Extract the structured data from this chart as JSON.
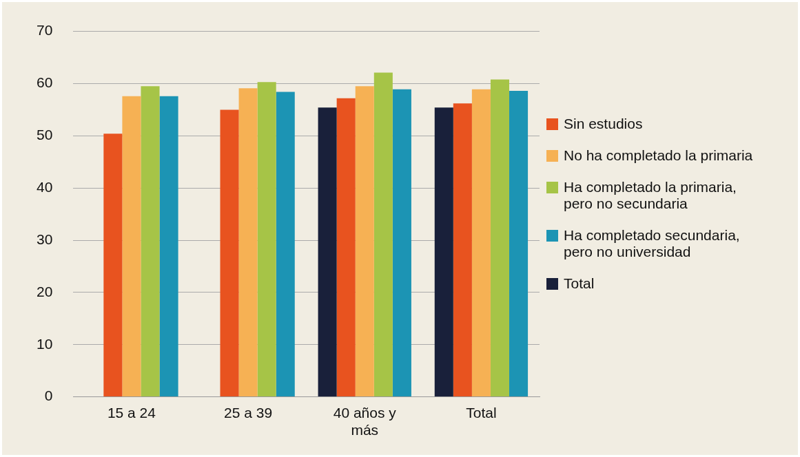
{
  "chart_data": {
    "type": "bar",
    "categories": [
      "15 a 24",
      "25 a 39",
      "40 años y más",
      "Total"
    ],
    "series": [
      {
        "name": "Total",
        "color": "#19203a",
        "values": [
          null,
          null,
          55.4,
          55.4
        ]
      },
      {
        "name": "Sin estudios",
        "color": "#e8531f",
        "values": [
          50.4,
          55.0,
          57.2,
          56.2
        ]
      },
      {
        "name": "No ha completado la primaria",
        "color": "#f6b154",
        "values": [
          57.6,
          59.1,
          59.5,
          58.9
        ]
      },
      {
        "name": "Ha completado la primaria, pero no secundaria",
        "color": "#a6c447",
        "values": [
          59.5,
          60.3,
          62.1,
          60.8
        ]
      },
      {
        "name": "Ha completado secundaria, pero no universidad",
        "color": "#1c94b4",
        "values": [
          57.6,
          58.4,
          58.9,
          58.6
        ]
      }
    ],
    "ylim": [
      0,
      70
    ],
    "yticks": [
      0,
      10,
      20,
      30,
      40,
      50,
      60,
      70
    ],
    "grid": "y",
    "legend": "right"
  }
}
